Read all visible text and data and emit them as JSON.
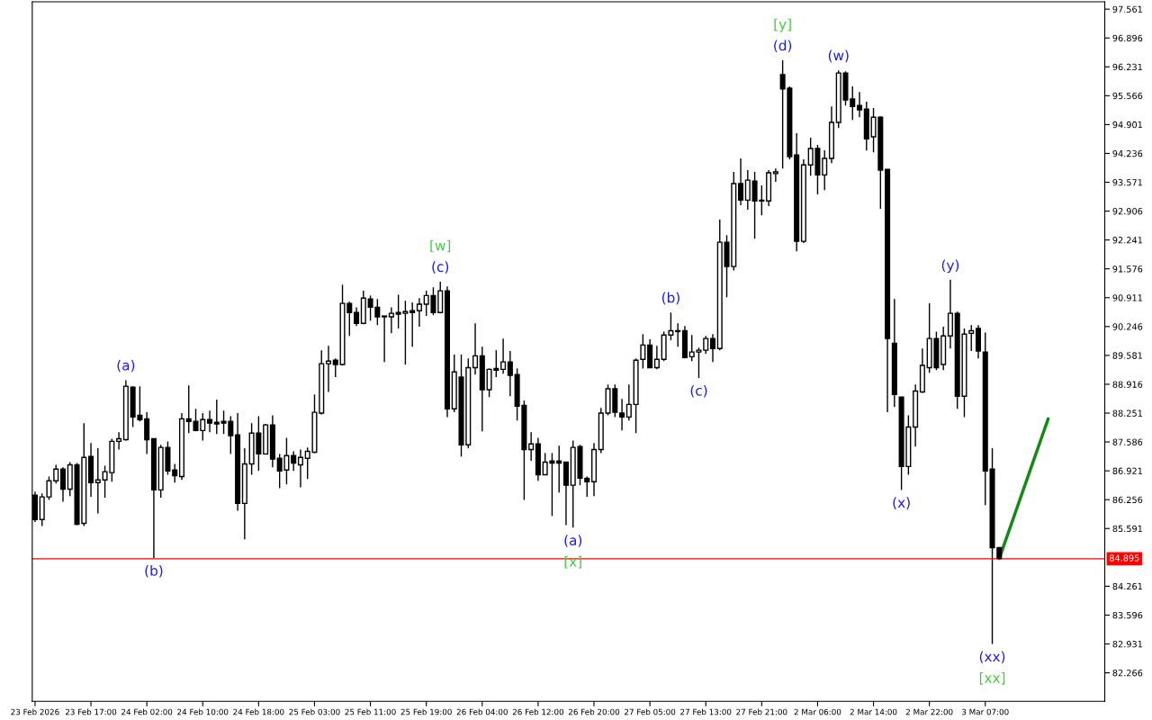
{
  "chart_data": {
    "type": "candlestick",
    "color": "#000000",
    "categories": [
      "23 Feb 2026",
      null,
      null,
      null,
      null,
      null,
      null,
      null,
      "23 Feb 17:00",
      null,
      null,
      null,
      null,
      null,
      null,
      null,
      "24 Feb 02:00",
      null,
      null,
      null,
      null,
      null,
      null,
      null,
      "24 Feb 10:00",
      null,
      null,
      null,
      null,
      null,
      null,
      null,
      "24 Feb 18:00",
      null,
      null,
      null,
      null,
      null,
      null,
      null,
      "25 Feb 03:00",
      null,
      null,
      null,
      null,
      null,
      null,
      null,
      "25 Feb 11:00",
      null,
      null,
      null,
      null,
      null,
      null,
      null,
      "25 Feb 19:00",
      null,
      null,
      null,
      null,
      null,
      null,
      null,
      "26 Feb 04:00",
      null,
      null,
      null,
      null,
      null,
      null,
      null,
      "26 Feb 12:00",
      null,
      null,
      null,
      null,
      null,
      null,
      null,
      "26 Feb 20:00",
      null,
      null,
      null,
      null,
      null,
      null,
      null,
      "27 Feb 05:00",
      null,
      null,
      null,
      null,
      null,
      null,
      null,
      "27 Feb 13:00",
      null,
      null,
      null,
      null,
      null,
      null,
      null,
      "27 Feb 21:00",
      null,
      null,
      null,
      null,
      null,
      null,
      null,
      "2 Mar 06:00",
      null,
      null,
      null,
      null,
      null,
      null,
      null,
      "2 Mar 14:00",
      null,
      null,
      null,
      null,
      null,
      null,
      null,
      "2 Mar 22:00",
      null,
      null,
      null,
      null,
      null,
      null,
      null,
      "3 Mar 07:00",
      null,
      null,
      null,
      null,
      null,
      null,
      null,
      null,
      null,
      null,
      null,
      null,
      null,
      null,
      null,
      null,
      null
    ],
    "ohlc": [
      [
        86.36,
        86.44,
        85.74,
        85.8
      ],
      [
        85.8,
        86.4,
        85.65,
        86.32
      ],
      [
        86.32,
        86.79,
        86.25,
        86.69
      ],
      [
        86.69,
        87.06,
        86.63,
        86.96
      ],
      [
        86.96,
        87.0,
        86.21,
        86.5
      ],
      [
        86.5,
        87.12,
        86.34,
        87.06
      ],
      [
        87.06,
        87.1,
        85.67,
        85.69
      ],
      [
        85.71,
        88.02,
        85.65,
        87.23
      ],
      [
        87.25,
        87.56,
        86.32,
        86.65
      ],
      [
        86.65,
        87.44,
        85.94,
        86.71
      ],
      [
        86.71,
        87.04,
        86.3,
        86.9
      ],
      [
        86.88,
        87.66,
        86.67,
        87.6
      ],
      [
        87.6,
        87.81,
        87.41,
        87.66
      ],
      [
        87.64,
        89.01,
        87.62,
        88.87
      ],
      [
        88.85,
        88.87,
        87.93,
        88.16
      ],
      [
        88.2,
        88.87,
        88.06,
        88.1
      ],
      [
        88.12,
        88.27,
        87.31,
        87.64
      ],
      [
        87.66,
        87.66,
        84.91,
        86.48
      ],
      [
        86.48,
        87.52,
        86.3,
        87.46
      ],
      [
        87.46,
        87.6,
        86.83,
        86.92
      ],
      [
        86.94,
        87.08,
        86.65,
        86.81
      ],
      [
        86.79,
        88.25,
        86.71,
        88.12
      ],
      [
        88.12,
        88.89,
        87.79,
        88.06
      ],
      [
        88.06,
        88.35,
        87.83,
        87.85
      ],
      [
        87.85,
        88.25,
        87.62,
        88.1
      ],
      [
        88.1,
        88.31,
        87.81,
        88.02
      ],
      [
        88.04,
        88.56,
        87.77,
        88.0
      ],
      [
        88.06,
        88.31,
        87.77,
        88.02
      ],
      [
        88.06,
        88.18,
        87.31,
        87.73
      ],
      [
        87.75,
        88.25,
        86.0,
        86.17
      ],
      [
        86.17,
        87.44,
        85.34,
        87.08
      ],
      [
        87.08,
        88.02,
        86.83,
        87.79
      ],
      [
        87.79,
        88.18,
        86.92,
        87.31
      ],
      [
        87.31,
        88.0,
        87.29,
        87.98
      ],
      [
        87.98,
        88.2,
        87.0,
        87.19
      ],
      [
        87.21,
        87.31,
        86.52,
        86.92
      ],
      [
        86.94,
        87.68,
        86.61,
        87.27
      ],
      [
        87.27,
        87.37,
        86.92,
        87.1
      ],
      [
        87.06,
        87.41,
        86.54,
        87.23
      ],
      [
        87.21,
        87.46,
        86.73,
        87.37
      ],
      [
        87.35,
        88.68,
        87.33,
        88.27
      ],
      [
        88.25,
        89.7,
        88.22,
        89.39
      ],
      [
        89.39,
        89.8,
        88.74,
        89.45
      ],
      [
        89.47,
        89.51,
        89.08,
        89.37
      ],
      [
        89.37,
        91.21,
        89.35,
        90.78
      ],
      [
        90.78,
        90.82,
        90.03,
        90.57
      ],
      [
        90.57,
        90.69,
        90.26,
        90.32
      ],
      [
        90.32,
        91.07,
        90.3,
        90.9
      ],
      [
        90.88,
        90.96,
        90.38,
        90.69
      ],
      [
        90.69,
        90.88,
        90.28,
        90.47
      ],
      [
        90.49,
        90.49,
        89.43,
        90.47
      ],
      [
        90.47,
        90.69,
        90.09,
        90.55
      ],
      [
        90.57,
        90.98,
        90.2,
        90.53
      ],
      [
        90.55,
        90.84,
        89.37,
        90.59
      ],
      [
        90.61,
        90.8,
        89.78,
        90.57
      ],
      [
        90.61,
        90.9,
        90.24,
        90.76
      ],
      [
        90.76,
        91.07,
        90.49,
        90.96
      ],
      [
        90.96,
        91.15,
        90.51,
        90.57
      ],
      [
        90.57,
        91.28,
        90.55,
        91.07
      ],
      [
        91.07,
        91.17,
        88.16,
        88.35
      ],
      [
        88.35,
        89.6,
        88.27,
        89.2
      ],
      [
        89.08,
        89.6,
        87.25,
        87.52
      ],
      [
        87.52,
        89.51,
        87.44,
        89.3
      ],
      [
        89.3,
        90.32,
        89.14,
        89.57
      ],
      [
        89.57,
        89.78,
        87.83,
        88.79
      ],
      [
        88.79,
        89.28,
        88.62,
        89.26
      ],
      [
        89.28,
        89.7,
        89.08,
        89.24
      ],
      [
        89.26,
        89.97,
        89.16,
        89.43
      ],
      [
        89.43,
        89.68,
        88.64,
        89.12
      ],
      [
        89.14,
        89.28,
        88.08,
        88.41
      ],
      [
        88.43,
        88.54,
        86.25,
        87.41
      ],
      [
        87.41,
        87.81,
        87.15,
        87.54
      ],
      [
        87.54,
        87.68,
        86.69,
        86.83
      ],
      [
        86.83,
        87.33,
        86.83,
        87.12
      ],
      [
        87.15,
        87.33,
        85.88,
        87.1
      ],
      [
        87.15,
        87.5,
        86.42,
        87.1
      ],
      [
        87.12,
        87.12,
        85.67,
        86.59
      ],
      [
        86.59,
        87.62,
        85.61,
        87.46
      ],
      [
        87.48,
        87.52,
        86.59,
        86.75
      ],
      [
        86.75,
        86.79,
        86.32,
        86.67
      ],
      [
        86.67,
        87.56,
        86.34,
        87.41
      ],
      [
        87.41,
        88.37,
        87.33,
        88.25
      ],
      [
        88.25,
        88.91,
        88.2,
        88.81
      ],
      [
        88.81,
        88.91,
        88.16,
        88.27
      ],
      [
        88.25,
        88.58,
        87.85,
        88.16
      ],
      [
        88.16,
        88.91,
        88.08,
        88.45
      ],
      [
        88.45,
        89.51,
        87.79,
        89.47
      ],
      [
        89.49,
        90.07,
        89.28,
        89.82
      ],
      [
        89.82,
        89.95,
        89.3,
        89.3
      ],
      [
        89.3,
        89.8,
        89.26,
        89.49
      ],
      [
        89.49,
        90.13,
        89.45,
        90.05
      ],
      [
        90.05,
        90.57,
        89.93,
        90.15
      ],
      [
        90.15,
        90.32,
        89.78,
        90.13
      ],
      [
        90.15,
        90.26,
        89.51,
        89.53
      ],
      [
        89.55,
        90.05,
        89.45,
        89.66
      ],
      [
        89.66,
        89.76,
        89.06,
        89.7
      ],
      [
        89.7,
        90.03,
        89.62,
        89.97
      ],
      [
        89.97,
        90.07,
        89.43,
        89.74
      ],
      [
        89.74,
        92.71,
        89.7,
        92.19
      ],
      [
        92.19,
        92.35,
        90.92,
        91.63
      ],
      [
        91.63,
        93.81,
        91.54,
        93.54
      ],
      [
        93.54,
        94.12,
        93.04,
        93.16
      ],
      [
        93.16,
        93.85,
        92.94,
        93.62
      ],
      [
        93.6,
        93.81,
        92.27,
        93.14
      ],
      [
        93.16,
        93.5,
        92.81,
        93.14
      ],
      [
        93.14,
        93.85,
        93.02,
        93.79
      ],
      [
        93.77,
        93.89,
        93.58,
        93.81
      ],
      [
        96.05,
        96.38,
        93.89,
        95.72
      ],
      [
        95.74,
        95.78,
        94.1,
        94.16
      ],
      [
        94.2,
        94.7,
        91.98,
        92.21
      ],
      [
        92.21,
        94.1,
        92.17,
        93.97
      ],
      [
        93.97,
        94.6,
        93.72,
        94.35
      ],
      [
        94.35,
        94.43,
        93.29,
        93.74
      ],
      [
        93.74,
        94.31,
        93.39,
        94.12
      ],
      [
        94.12,
        95.32,
        94.01,
        94.95
      ],
      [
        94.95,
        96.15,
        94.82,
        96.09
      ],
      [
        96.09,
        96.13,
        95.34,
        95.47
      ],
      [
        95.49,
        95.78,
        95.01,
        95.32
      ],
      [
        95.34,
        95.65,
        95.07,
        95.24
      ],
      [
        95.26,
        95.43,
        94.3,
        94.57
      ],
      [
        94.62,
        95.28,
        94.26,
        95.07
      ],
      [
        95.07,
        95.09,
        92.96,
        93.85
      ],
      [
        93.87,
        93.87,
        88.27,
        89.97
      ],
      [
        89.86,
        90.88,
        88.39,
        88.68
      ],
      [
        88.62,
        88.62,
        86.48,
        87.02
      ],
      [
        87.02,
        88.2,
        86.83,
        87.93
      ],
      [
        87.93,
        88.91,
        87.48,
        88.76
      ],
      [
        88.74,
        89.74,
        88.72,
        89.35
      ],
      [
        89.3,
        90.78,
        89.18,
        89.97
      ],
      [
        89.97,
        90.13,
        89.24,
        89.3
      ],
      [
        89.37,
        90.24,
        89.24,
        90.03
      ],
      [
        90.03,
        91.32,
        89.74,
        90.55
      ],
      [
        90.55,
        90.59,
        88.35,
        88.64
      ],
      [
        88.64,
        90.2,
        88.16,
        90.07
      ],
      [
        90.09,
        90.28,
        89.68,
        90.15
      ],
      [
        90.2,
        90.28,
        89.51,
        89.68
      ],
      [
        89.66,
        90.11,
        86.13,
        86.92
      ],
      [
        86.96,
        87.44,
        82.93,
        85.15
      ],
      [
        85.15,
        85.15,
        84.89,
        84.9
      ],
      null,
      null,
      null,
      null,
      null,
      null,
      null,
      null,
      null,
      null,
      null,
      null,
      null,
      null,
      null
    ],
    "value_labels": [
      null,
      null,
      null,
      null,
      null,
      null,
      null,
      null,
      null,
      null,
      null,
      null,
      null,
      "(a)",
      null,
      null,
      null,
      "(b)",
      null,
      null,
      null,
      null,
      null,
      null,
      null,
      null,
      null,
      null,
      null,
      null,
      null,
      null,
      null,
      null,
      null,
      null,
      null,
      null,
      null,
      null,
      null,
      null,
      null,
      null,
      null,
      null,
      null,
      null,
      null,
      null,
      null,
      null,
      null,
      null,
      null,
      null,
      null,
      null,
      "[w]\n(c)",
      null,
      null,
      null,
      null,
      null,
      null,
      null,
      null,
      null,
      null,
      null,
      null,
      null,
      null,
      null,
      null,
      null,
      null,
      "(a)\n[x]",
      null,
      null,
      null,
      null,
      null,
      null,
      null,
      null,
      null,
      null,
      null,
      null,
      null,
      "(b)",
      null,
      null,
      null,
      "(c)",
      null,
      null,
      null,
      null,
      null,
      null,
      null,
      null,
      null,
      null,
      null,
      "[y]\n(d)",
      null,
      null,
      null,
      null,
      null,
      null,
      null,
      "(w)",
      null,
      null,
      null,
      null,
      null,
      null,
      null,
      null,
      "(x)",
      null,
      null,
      null,
      null,
      null,
      null,
      "(y)",
      null,
      null,
      null,
      null,
      null,
      "(xx)\n[xx]",
      null,
      null,
      null,
      null,
      null,
      null,
      null,
      null,
      null,
      null,
      null,
      null,
      null,
      null,
      null,
      null
    ],
    "series": [
      {
        "type": "line",
        "color": "#138a13",
        "values": [
          null,
          null,
          null,
          null,
          null,
          null,
          null,
          null,
          null,
          null,
          null,
          null,
          null,
          null,
          null,
          null,
          null,
          null,
          null,
          null,
          null,
          null,
          null,
          null,
          null,
          null,
          null,
          null,
          null,
          null,
          null,
          null,
          null,
          null,
          null,
          null,
          null,
          null,
          null,
          null,
          null,
          null,
          null,
          null,
          null,
          null,
          null,
          null,
          null,
          null,
          null,
          null,
          null,
          null,
          null,
          null,
          null,
          null,
          null,
          null,
          null,
          null,
          null,
          null,
          null,
          null,
          null,
          null,
          null,
          null,
          null,
          null,
          null,
          null,
          null,
          null,
          null,
          null,
          null,
          null,
          null,
          null,
          null,
          null,
          null,
          null,
          null,
          null,
          null,
          null,
          null,
          null,
          null,
          null,
          null,
          null,
          null,
          null,
          null,
          null,
          null,
          null,
          null,
          null,
          null,
          null,
          null,
          null,
          null,
          null,
          null,
          null,
          null,
          null,
          null,
          null,
          null,
          null,
          null,
          null,
          null,
          null,
          null,
          null,
          null,
          null,
          null,
          null,
          null,
          null,
          null,
          null,
          null,
          null,
          null,
          null,
          null,
          null,
          84.9,
          85.36,
          85.82,
          86.28,
          86.74,
          87.2,
          87.66,
          88.12,
          null,
          null,
          null,
          null,
          null,
          null,
          null,
          null
        ]
      }
    ],
    "ylim": [
      81.61,
      97.73
    ],
    "yticks": [
      97.561,
      96.896,
      96.231,
      95.566,
      94.901,
      94.236,
      93.571,
      92.906,
      92.241,
      91.576,
      90.911,
      90.246,
      89.581,
      88.916,
      88.251,
      87.586,
      86.921,
      86.256,
      85.591,
      84.261,
      83.596,
      82.931,
      82.266
    ],
    "ref_lines": [
      {
        "axis": "y",
        "value": 84.895,
        "label": "84.895",
        "color": "#ff0000"
      }
    ]
  }
}
